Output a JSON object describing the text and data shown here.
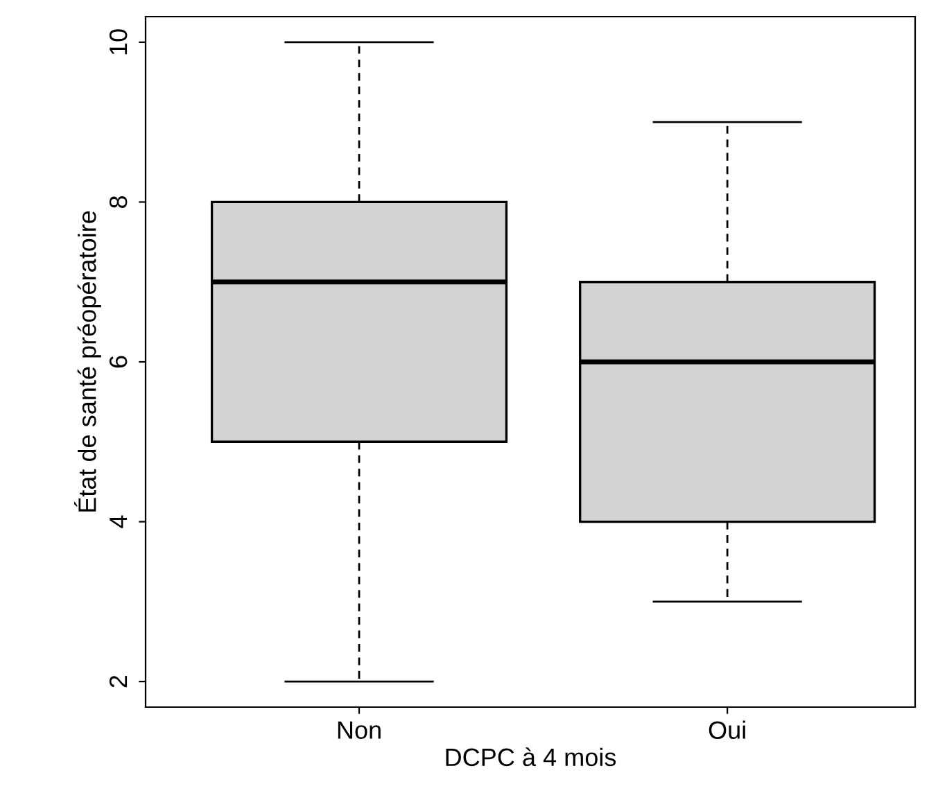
{
  "chart_data": {
    "type": "box",
    "xlabel": "DCPC à 4 mois",
    "ylabel": "État de santé préopératoire",
    "categories": [
      "Non",
      "Oui"
    ],
    "boxes": [
      {
        "low": 2,
        "q1": 5,
        "median": 7,
        "q3": 8,
        "high": 10
      },
      {
        "low": 3,
        "q1": 4,
        "median": 6,
        "q3": 7,
        "high": 9
      }
    ],
    "color": "#d3d3d3",
    "ylim": [
      1.68,
      10.32
    ],
    "yticks": [
      2,
      4,
      6,
      8,
      10
    ],
    "grid": false,
    "legend": false
  }
}
